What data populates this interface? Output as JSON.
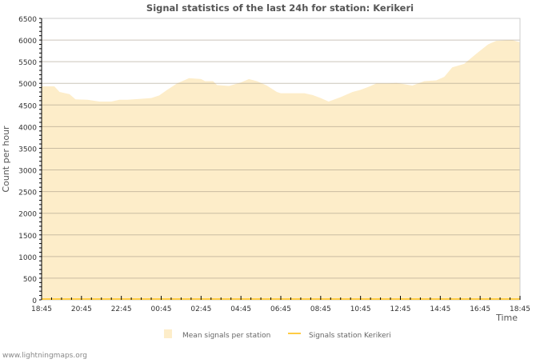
{
  "chart_data": {
    "type": "area",
    "title": "Signal statistics of the last 24h for station: Kerikeri",
    "xlabel": "Time",
    "ylabel": "Count per hour",
    "ylim": [
      0,
      6500
    ],
    "yticks": [
      0,
      500,
      1000,
      1500,
      2000,
      2500,
      3000,
      3500,
      4000,
      4500,
      5000,
      5500,
      6000,
      6500
    ],
    "xlim_hours": [
      0,
      24
    ],
    "xtick_labels": [
      "18:45",
      "20:45",
      "22:45",
      "00:45",
      "02:45",
      "04:45",
      "06:45",
      "08:45",
      "10:45",
      "12:45",
      "14:45",
      "16:45",
      "18:45"
    ],
    "grid": true,
    "legend_position": "bottom",
    "series": [
      {
        "name": "Mean signals per station",
        "color": "#fdedc9",
        "kind": "area",
        "hours": [
          0,
          0.1,
          0.64,
          0.9,
          1.4,
          1.7,
          2.3,
          2.9,
          3.5,
          3.9,
          4.3,
          4.9,
          5.5,
          5.9,
          6.3,
          6.8,
          7.4,
          8,
          8.2,
          8.6,
          8.8,
          9.4,
          10,
          10.4,
          10.8,
          11.3,
          11.8,
          12,
          13.2,
          13.6,
          14,
          14.4,
          15,
          15.6,
          16,
          16.4,
          16.8,
          17.4,
          17.8,
          18.6,
          19.2,
          19.8,
          20.2,
          20.6,
          21.2,
          21.8,
          22.4,
          22.8,
          23.6,
          24
        ],
        "values": [
          4930,
          4930,
          4930,
          4800,
          4750,
          4630,
          4620,
          4580,
          4580,
          4620,
          4620,
          4640,
          4660,
          4720,
          4850,
          5000,
          5120,
          5100,
          5050,
          5050,
          4960,
          4940,
          5020,
          5100,
          5050,
          4950,
          4800,
          4770,
          4770,
          4730,
          4660,
          4580,
          4680,
          4800,
          4850,
          4920,
          5000,
          5000,
          5010,
          4950,
          5050,
          5070,
          5150,
          5370,
          5450,
          5680,
          5900,
          5980,
          6000,
          5950
        ]
      },
      {
        "name": "Signals station Kerikeri",
        "color": "#ffcc44",
        "kind": "line",
        "hours": [
          0,
          24
        ],
        "values": [
          0,
          0
        ]
      }
    ]
  },
  "footer": {
    "credit": "www.lightningmaps.org"
  }
}
